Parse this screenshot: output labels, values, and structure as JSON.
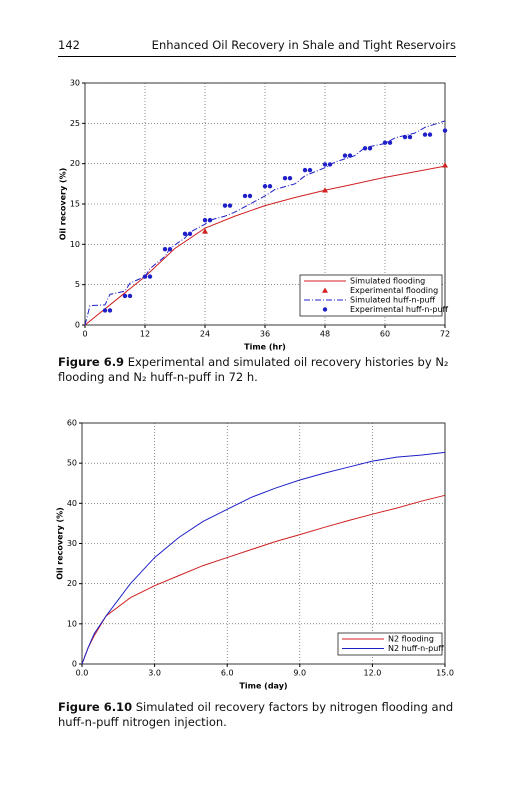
{
  "header": {
    "page_number": "142",
    "running_title": "Enhanced Oil Recovery in Shale and Tight Reservoirs"
  },
  "chart_data": [
    {
      "type": "line",
      "x_label": "Time (hr)",
      "y_label": "Oil recovery (%)",
      "xlim": [
        0,
        72
      ],
      "xticks": [
        0,
        12,
        24,
        36,
        48,
        60,
        72
      ],
      "ylim": [
        0,
        30
      ],
      "yticks": [
        0,
        5,
        10,
        15,
        20,
        25,
        30
      ],
      "grid": true,
      "legend": "bottom-right",
      "series": [
        {
          "name": "Simulated flooding",
          "color": "#d02020",
          "kind": "line",
          "style": "solid",
          "x": [
            0,
            6,
            12,
            18,
            24,
            30,
            36,
            42,
            48,
            54,
            60,
            66,
            72
          ],
          "values": [
            0,
            3,
            6,
            9.5,
            12,
            13.5,
            14.8,
            15.8,
            16.7,
            17.5,
            18.3,
            19,
            19.7
          ]
        },
        {
          "name": "Experimental flooding",
          "color": "#d02020",
          "kind": "scatter",
          "marker": "triangle",
          "x": [
            24,
            48,
            72
          ],
          "values": [
            11.6,
            16.7,
            19.8
          ]
        },
        {
          "name": "Simulated huff-n-puff",
          "color": "#2020c8",
          "kind": "line",
          "style": "dash-dot",
          "x": [
            0,
            1,
            4,
            5,
            8,
            9,
            12,
            13,
            16,
            17,
            20,
            21,
            24,
            25,
            28,
            30,
            33,
            36,
            38,
            42,
            44,
            48,
            50,
            54,
            56,
            60,
            62,
            66,
            68,
            72
          ],
          "values": [
            0,
            2.4,
            2.5,
            3.8,
            4.2,
            5.2,
            6,
            7,
            8.5,
            9.5,
            10.8,
            11.5,
            12.5,
            13,
            13.5,
            14,
            15,
            16,
            16.8,
            17.5,
            18.5,
            19.5,
            20.2,
            21,
            22,
            22.5,
            23.2,
            23.8,
            24.5,
            25.3
          ]
        },
        {
          "name": "Experimental huff-n-puff",
          "color": "#2020c8",
          "kind": "scatter",
          "marker": "circle",
          "x": [
            4,
            5,
            8,
            9,
            12,
            13,
            16,
            17,
            20,
            21,
            24,
            25,
            28,
            29,
            32,
            33,
            36,
            37,
            40,
            41,
            44,
            45,
            48,
            49,
            52,
            53,
            56,
            57,
            60,
            61,
            64,
            65,
            68,
            69,
            72
          ],
          "values": [
            1.8,
            1.8,
            3.6,
            3.6,
            6,
            6,
            9.4,
            9.4,
            11.3,
            11.3,
            13,
            13,
            14.8,
            14.8,
            16,
            16,
            17.2,
            17.2,
            18.2,
            18.2,
            19.2,
            19.2,
            19.9,
            19.9,
            21,
            21,
            21.9,
            21.9,
            22.6,
            22.6,
            23.3,
            23.3,
            23.6,
            23.6,
            24.1
          ]
        }
      ]
    },
    {
      "type": "line",
      "x_label": "Time (day)",
      "y_label": "Oil recovery (%)",
      "xlim": [
        0,
        15
      ],
      "xticks": [
        {
          "value": 0,
          "label": "0.0"
        },
        {
          "value": 3,
          "label": "3.0"
        },
        {
          "value": 6,
          "label": "6.0"
        },
        {
          "value": 9,
          "label": "9.0"
        },
        {
          "value": 12,
          "label": "12.0"
        },
        {
          "value": 15,
          "label": "15.0"
        }
      ],
      "ylim": [
        0,
        60
      ],
      "yticks": [
        0,
        10,
        20,
        30,
        40,
        50,
        60
      ],
      "grid": true,
      "legend": "bottom-right",
      "series": [
        {
          "name": "N2 flooding",
          "color": "#d02020",
          "kind": "line",
          "style": "solid",
          "x": [
            0,
            0.25,
            0.5,
            1,
            2,
            3,
            4,
            5,
            6,
            7,
            8,
            9,
            10,
            11,
            12,
            13,
            14,
            15
          ],
          "values": [
            0,
            4,
            7,
            12,
            16.5,
            19.5,
            22,
            24.5,
            26.5,
            28.5,
            30.5,
            32.2,
            34,
            35.7,
            37.3,
            38.8,
            40.5,
            42
          ]
        },
        {
          "name": "N2 huff-n-puff",
          "color": "#2020c8",
          "kind": "line",
          "style": "solid",
          "x": [
            0,
            0.25,
            0.5,
            1,
            2,
            3,
            4,
            5,
            6,
            7,
            8,
            9,
            10,
            11,
            12,
            13,
            14,
            15
          ],
          "values": [
            0,
            4,
            7.5,
            12,
            20,
            26.5,
            31.5,
            35.5,
            38.5,
            41.5,
            43.8,
            45.8,
            47.5,
            49,
            50.5,
            51.5,
            52,
            52.7
          ]
        }
      ]
    }
  ],
  "captions": [
    {
      "label": "Figure 6.9",
      "text": "Experimental and simulated oil recovery histories by N₂ flooding and N₂ huff-n-puff in 72 h."
    },
    {
      "label": "Figure 6.10",
      "text": "Simulated oil recovery factors by nitrogen flooding and huff-n-puff nitrogen injection."
    }
  ]
}
